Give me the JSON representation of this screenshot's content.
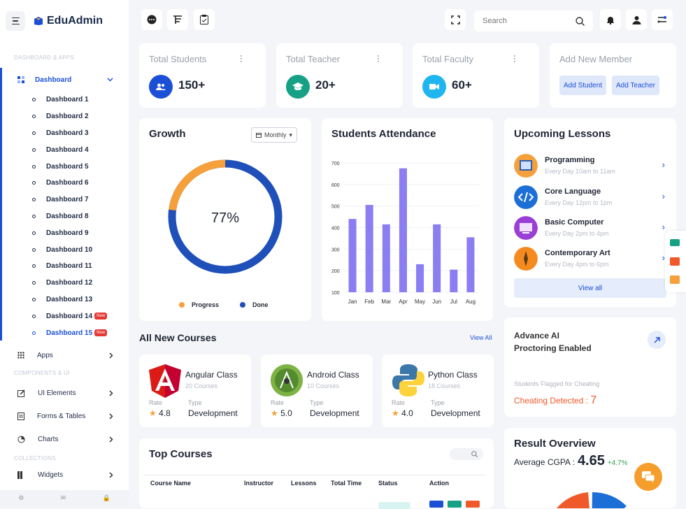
{
  "app": {
    "name": "EduAdmin"
  },
  "sidebar": {
    "section_dashboard": "DASHBOARD & APPS",
    "dashboard_label": "Dashboard",
    "items": [
      {
        "label": "Dashboard 1"
      },
      {
        "label": "Dashboard 2"
      },
      {
        "label": "Dashboard 3"
      },
      {
        "label": "Dashboard 4"
      },
      {
        "label": "Dashboard 5"
      },
      {
        "label": "Dashboard 6"
      },
      {
        "label": "Dashboard 7"
      },
      {
        "label": "Dashboard 8"
      },
      {
        "label": "Dashboard 9"
      },
      {
        "label": "Dashboard 10"
      },
      {
        "label": "Dashboard 11"
      },
      {
        "label": "Dashboard 12"
      },
      {
        "label": "Dashboard 13"
      },
      {
        "label": "Dashboard 14",
        "badge": "New"
      },
      {
        "label": "Dashboard 15",
        "badge": "New"
      }
    ],
    "apps_label": "Apps",
    "section_components": "COMPONENTS & UI",
    "ui_elements_label": "UI Elements",
    "forms_label": "Forms & Tables",
    "charts_label": "Charts",
    "section_collections": "COLLECTIONS",
    "widgets_label": "Widgets"
  },
  "search": {
    "placeholder": "Search"
  },
  "stats": [
    {
      "title": "Total Students",
      "value": "150+",
      "color": "#1b4fd6"
    },
    {
      "title": "Total Teacher",
      "value": "20+",
      "color": "#16a085"
    },
    {
      "title": "Total Faculty",
      "value": "60+",
      "color": "#1fb6f0"
    }
  ],
  "add_member": {
    "title": "Add New Member",
    "student_btn": "Add Student",
    "teacher_btn": "Add Teacher"
  },
  "growth": {
    "title": "Growth",
    "filter": "Monthly",
    "percent_label": "77%",
    "progress_fraction": 0.23,
    "done_fraction": 0.77,
    "legend_progress": "Progress",
    "legend_done": "Done",
    "progress_color": "#f5a03a",
    "done_color": "#1f4fb8"
  },
  "chart_data": {
    "type": "bar",
    "title": "Students Attendance",
    "categories": [
      "Jan",
      "Feb",
      "Mar",
      "Apr",
      "May",
      "Jun",
      "Jul",
      "Aug"
    ],
    "values": [
      440,
      505,
      415,
      675,
      230,
      415,
      205,
      355
    ],
    "yticks": [
      100,
      200,
      300,
      400,
      500,
      600,
      700
    ],
    "ylim": [
      100,
      700
    ],
    "color": "#8b7df2"
  },
  "lessons": {
    "title": "Upcoming Lessons",
    "items": [
      {
        "title": "Programming",
        "sub": "Every Day 10am to 11am"
      },
      {
        "title": "Core Language",
        "sub": "Every Day 12pm to 1pm"
      },
      {
        "title": "Basic Computer",
        "sub": "Every Day 2pm to 4pm"
      },
      {
        "title": "Contemporary Art",
        "sub": "Every Day 4pm to 6pm"
      }
    ],
    "view_all": "View all"
  },
  "courses": {
    "title": "All New Courses",
    "view_all": "View All",
    "rate_label": "Rate",
    "type_label": "Type",
    "items": [
      {
        "name": "Angular Class",
        "count": "20 Courses",
        "rate": "4.8",
        "type": "Development"
      },
      {
        "name": "Android Class",
        "count": "10 Courses",
        "rate": "5.0",
        "type": "Development"
      },
      {
        "name": "Python Class",
        "count": "18 Courses",
        "rate": "4.0",
        "type": "Development"
      }
    ]
  },
  "proctoring": {
    "title_1": "Advance AI",
    "title_2": "Proctoring Enabled",
    "flag_label": "Students Flagged for Cheating",
    "detected_label": "Cheating Detected :",
    "detected_value": "7"
  },
  "top_courses": {
    "title": "Top Courses",
    "headers": [
      "Course Name",
      "Instructor",
      "Lessons",
      "Total Time",
      "Status",
      "Action"
    ]
  },
  "result": {
    "title": "Result Overview",
    "cgpa_label": "Average CGPA :",
    "cgpa_value": "4.65",
    "delta": "+4.7%"
  }
}
